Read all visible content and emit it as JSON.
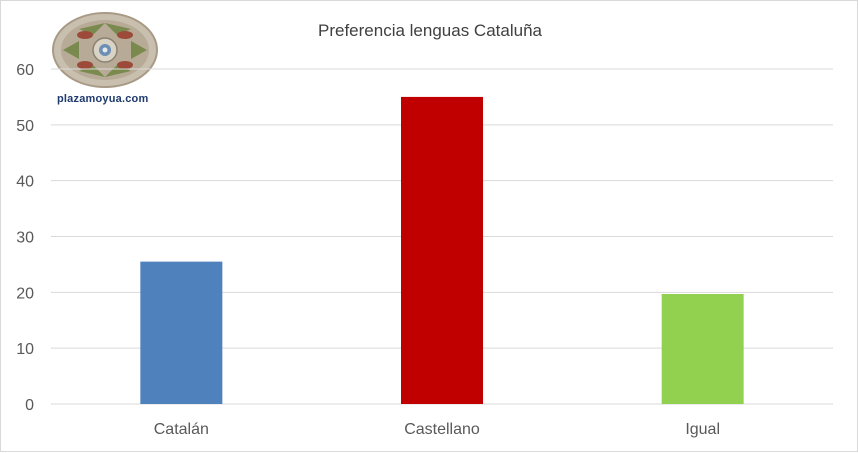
{
  "chart_data": {
    "type": "bar",
    "title": "Preferencia lenguas Cataluña",
    "xlabel": "",
    "ylabel": "",
    "categories": [
      "Catalán",
      "Castellano",
      "Igual"
    ],
    "values": [
      25.5,
      55,
      19.7
    ],
    "colors": [
      "#4f81bd",
      "#c00000",
      "#92d050"
    ],
    "ylim": [
      0,
      60
    ],
    "yticks": [
      0,
      10,
      20,
      30,
      40,
      50,
      60
    ],
    "grid": true,
    "legend": "none"
  },
  "logo": {
    "text": "plazamoyua.com"
  },
  "colors": {
    "grid": "#d9d9d9",
    "axis_text": "#595959"
  }
}
